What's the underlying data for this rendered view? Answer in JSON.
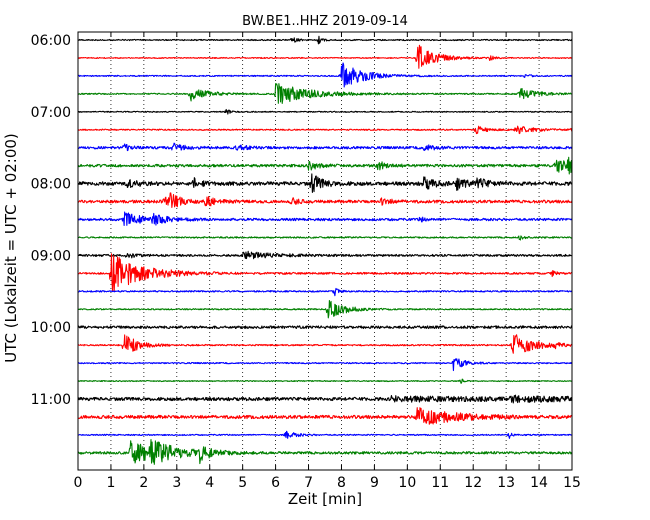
{
  "chart_data": {
    "type": "line",
    "title": "BW.BE1..HHZ 2019-09-14",
    "xlabel": "Zeit  [min]",
    "ylabel": "UTC (Lokalzeit = UTC + 02:00)",
    "xlim": [
      0,
      15
    ],
    "x_ticks": [
      "0",
      "1",
      "2",
      "3",
      "4",
      "5",
      "6",
      "7",
      "8",
      "9",
      "10",
      "11",
      "12",
      "13",
      "14",
      "15"
    ],
    "y_tick_labels": [
      "06:00",
      "07:00",
      "08:00",
      "09:00",
      "10:00",
      "11:00"
    ],
    "grid": "vertical dotted",
    "colors": [
      "#000000",
      "#ff0000",
      "#0000ff",
      "#008000"
    ],
    "series": [
      {
        "start": "06:00",
        "color": "#000000",
        "noise": 0.6,
        "events": [
          [
            6.5,
            3,
            0.15
          ],
          [
            7.3,
            4,
            0.1
          ]
        ]
      },
      {
        "start": "06:15",
        "color": "#ff0000",
        "noise": 0.5,
        "events": [
          [
            10.3,
            14,
            0.5
          ],
          [
            12.5,
            3,
            0.1
          ]
        ]
      },
      {
        "start": "06:30",
        "color": "#0000ff",
        "noise": 0.6,
        "events": [
          [
            8.0,
            14,
            0.6
          ],
          [
            13.6,
            3,
            0.1
          ]
        ]
      },
      {
        "start": "06:45",
        "color": "#008000",
        "noise": 0.6,
        "events": [
          [
            3.4,
            7,
            0.5
          ],
          [
            6.0,
            11,
            1.0
          ],
          [
            13.4,
            6,
            0.5
          ]
        ]
      },
      {
        "start": "07:00",
        "color": "#000000",
        "noise": 0.5,
        "events": [
          [
            4.5,
            3,
            0.1
          ]
        ]
      },
      {
        "start": "07:15",
        "color": "#ff0000",
        "noise": 0.6,
        "events": [
          [
            12.1,
            4,
            0.3
          ],
          [
            13.3,
            4,
            0.5
          ],
          [
            15.0,
            3,
            0.1
          ]
        ]
      },
      {
        "start": "07:30",
        "color": "#0000ff",
        "noise": 1.2,
        "events": [
          [
            1.4,
            3,
            0.2
          ],
          [
            2.9,
            4,
            0.3
          ],
          [
            4.8,
            3,
            0.3
          ],
          [
            10.5,
            3,
            0.3
          ]
        ]
      },
      {
        "start": "07:45",
        "color": "#008000",
        "noise": 1.3,
        "events": [
          [
            7.0,
            4,
            0.3
          ],
          [
            9.1,
            4,
            0.3
          ],
          [
            14.5,
            7,
            0.6
          ],
          [
            14.9,
            5,
            0.3
          ]
        ]
      },
      {
        "start": "08:00",
        "color": "#000000",
        "noise": 1.8,
        "events": [
          [
            1.5,
            4,
            0.3
          ],
          [
            3.5,
            5,
            0.2
          ],
          [
            7.1,
            9,
            0.3
          ],
          [
            10.5,
            6,
            0.3
          ],
          [
            11.5,
            5,
            0.3
          ],
          [
            12.1,
            5,
            0.3
          ]
        ]
      },
      {
        "start": "08:15",
        "color": "#ff0000",
        "noise": 1.4,
        "events": [
          [
            2.6,
            4,
            0.3
          ],
          [
            2.8,
            6,
            0.3
          ],
          [
            3.8,
            6,
            0.3
          ],
          [
            6.5,
            3,
            0.2
          ],
          [
            9.2,
            3,
            0.3
          ]
        ]
      },
      {
        "start": "08:30",
        "color": "#0000ff",
        "noise": 1.2,
        "events": [
          [
            1.4,
            7,
            0.5
          ],
          [
            2.3,
            4,
            0.4
          ],
          [
            10.4,
            3,
            0.1
          ]
        ]
      },
      {
        "start": "08:45",
        "color": "#008000",
        "noise": 0.7,
        "events": [
          [
            13.4,
            3,
            0.1
          ]
        ]
      },
      {
        "start": "09:00",
        "color": "#000000",
        "noise": 1.0,
        "events": [
          [
            1.5,
            3,
            0.2
          ],
          [
            5.0,
            4,
            0.8
          ]
        ]
      },
      {
        "start": "09:15",
        "color": "#ff0000",
        "noise": 0.9,
        "events": [
          [
            1.0,
            20,
            0.9
          ],
          [
            14.4,
            3,
            0.1
          ]
        ]
      },
      {
        "start": "09:30",
        "color": "#0000ff",
        "noise": 0.7,
        "events": [
          [
            7.8,
            4,
            0.1
          ]
        ]
      },
      {
        "start": "09:45",
        "color": "#008000",
        "noise": 0.6,
        "events": [
          [
            7.6,
            9,
            0.5
          ]
        ]
      },
      {
        "start": "10:00",
        "color": "#000000",
        "noise": 1.3,
        "events": []
      },
      {
        "start": "10:15",
        "color": "#ff0000",
        "noise": 0.7,
        "events": [
          [
            1.4,
            11,
            0.4
          ],
          [
            13.2,
            12,
            0.6
          ],
          [
            14.5,
            4,
            0.1
          ]
        ]
      },
      {
        "start": "10:30",
        "color": "#0000ff",
        "noise": 0.6,
        "events": [
          [
            11.4,
            7,
            0.3
          ]
        ]
      },
      {
        "start": "10:45",
        "color": "#008000",
        "noise": 0.5,
        "events": [
          [
            11.6,
            3,
            0.1
          ]
        ]
      },
      {
        "start": "11:00",
        "color": "#000000",
        "noise": 1.6,
        "events": [
          [
            9.5,
            2,
            3.0
          ],
          [
            13.0,
            2,
            2.0
          ]
        ]
      },
      {
        "start": "11:15",
        "color": "#ff0000",
        "noise": 1.6,
        "events": [
          [
            10.3,
            9,
            1.0
          ]
        ]
      },
      {
        "start": "11:30",
        "color": "#0000ff",
        "noise": 0.6,
        "events": [
          [
            6.3,
            4,
            0.3
          ],
          [
            13.1,
            3,
            0.1
          ]
        ]
      },
      {
        "start": "11:45",
        "color": "#008000",
        "noise": 1.2,
        "events": [
          [
            1.6,
            11,
            0.8
          ],
          [
            2.2,
            8,
            0.8
          ],
          [
            3.7,
            8,
            0.3
          ]
        ]
      }
    ]
  }
}
